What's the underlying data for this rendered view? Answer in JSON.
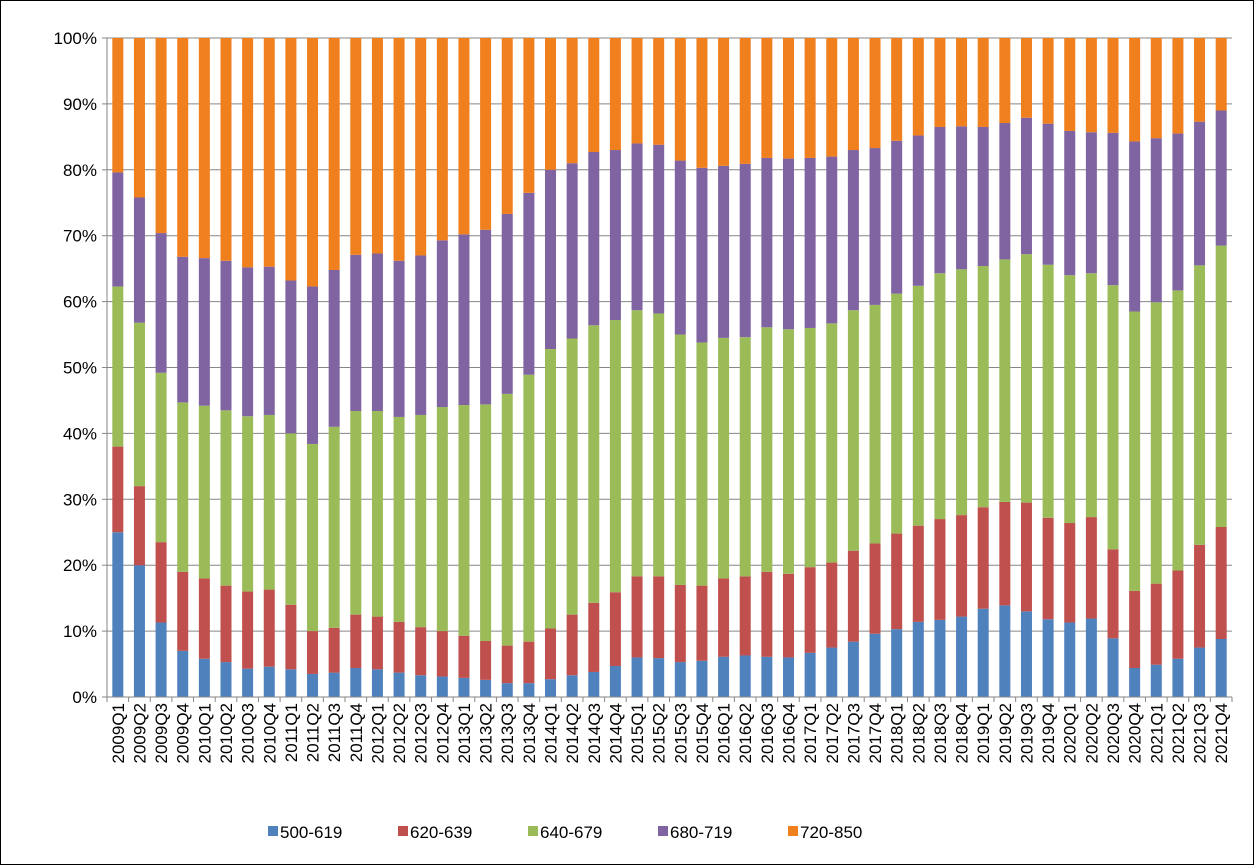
{
  "chart_data": {
    "type": "stacked_bar_100",
    "categories": [
      "2009Q1",
      "2009Q2",
      "2009Q3",
      "2009Q4",
      "2010Q1",
      "2010Q2",
      "2010Q3",
      "2010Q4",
      "2011Q1",
      "2011Q2",
      "2011Q3",
      "2011Q4",
      "2012Q1",
      "2012Q2",
      "2012Q3",
      "2012Q4",
      "2013Q1",
      "2013Q2",
      "2013Q3",
      "2013Q4",
      "2014Q1",
      "2014Q2",
      "2014Q3",
      "2014Q4",
      "2015Q1",
      "2015Q2",
      "2015Q3",
      "2015Q4",
      "2016Q1",
      "2016Q2",
      "2016Q3",
      "2016Q4",
      "2017Q1",
      "2017Q2",
      "2017Q3",
      "2017Q4",
      "2018Q1",
      "2018Q2",
      "2018Q3",
      "2018Q4",
      "2019Q1",
      "2019Q2",
      "2019Q3",
      "2019Q4",
      "2020Q1",
      "2020Q2",
      "2020Q3",
      "2020Q4",
      "2021Q1",
      "2021Q2",
      "2021Q3",
      "2021Q4"
    ],
    "series": [
      {
        "name": "500-619",
        "color": "#4f81bd",
        "values": [
          25,
          20,
          11.3,
          7,
          5.8,
          5.3,
          4.3,
          4.6,
          4.2,
          3.5,
          3.7,
          4.4,
          4.2,
          3.7,
          3.3,
          3.1,
          2.9,
          2.6,
          2.1,
          2.1,
          2.7,
          3.3,
          3.8,
          4.7,
          6,
          5.9,
          5.3,
          5.5,
          6.1,
          6.3,
          6.1,
          6,
          6.7,
          7.5,
          8.4,
          9.6,
          10.3,
          11.4,
          11.7,
          12.2,
          13.4,
          13.9,
          13,
          11.8,
          11.3,
          11.9,
          8.9,
          4.4,
          4.9,
          5.8,
          7.5,
          8.8
        ]
      },
      {
        "name": "620-639",
        "color": "#c0504d",
        "values": [
          13,
          12,
          12.2,
          12,
          12.2,
          11.6,
          11.7,
          11.7,
          9.8,
          6.5,
          6.8,
          8.1,
          8,
          7.7,
          7.3,
          6.9,
          6.4,
          5.9,
          5.7,
          6.3,
          7.7,
          9.2,
          10.5,
          11.2,
          12.3,
          12.4,
          11.7,
          11.4,
          11.9,
          12,
          12.9,
          12.7,
          13,
          12.9,
          13.8,
          13.7,
          14.5,
          14.6,
          15.3,
          15.4,
          15.4,
          15.7,
          16.5,
          15.4,
          15.1,
          15.4,
          13.5,
          11.7,
          12.3,
          13.4,
          15.6,
          17
        ]
      },
      {
        "name": "640-679",
        "color": "#9bbb59",
        "values": [
          24.3,
          24.8,
          25.7,
          25.7,
          26.2,
          26.6,
          26.6,
          26.5,
          26,
          28.4,
          30.5,
          30.9,
          31.2,
          31.1,
          32.2,
          34,
          35,
          35.9,
          38.2,
          40.5,
          42.4,
          41.9,
          42.1,
          41.3,
          40.4,
          39.9,
          38,
          36.9,
          36.5,
          36.3,
          37.1,
          37.1,
          36.3,
          36.3,
          36.5,
          36.2,
          36.4,
          36.4,
          37.3,
          37.3,
          36.6,
          36.8,
          37.7,
          38.4,
          37.6,
          37,
          40.1,
          42.4,
          42.7,
          42.5,
          42.4,
          42.7
        ]
      },
      {
        "name": "680-719",
        "color": "#8064a2",
        "values": [
          17.3,
          19,
          21.2,
          22.1,
          22.4,
          22.7,
          22.6,
          22.5,
          23.2,
          23.9,
          23.8,
          23.7,
          23.9,
          23.7,
          24.2,
          25.3,
          25.9,
          26.5,
          27.3,
          27.6,
          27.2,
          26.6,
          26.3,
          25.8,
          25.3,
          25.6,
          26.4,
          26.5,
          26.1,
          26.3,
          25.7,
          25.9,
          25.8,
          25.3,
          24.3,
          23.8,
          23.2,
          22.8,
          22.2,
          21.7,
          21.1,
          20.7,
          20.7,
          21.4,
          21.9,
          21.4,
          23.1,
          25.8,
          24.9,
          23.8,
          21.8,
          20.5
        ]
      },
      {
        "name": "720-850",
        "color": "#f07f1e",
        "values": [
          20.4,
          24.2,
          29.6,
          33.2,
          33.4,
          33.8,
          34.8,
          34.7,
          36.8,
          37.7,
          35.2,
          32.9,
          32.7,
          33.8,
          33,
          30.7,
          29.8,
          29.1,
          26.7,
          23.5,
          20,
          19,
          17.3,
          17,
          16,
          16.2,
          18.6,
          19.7,
          19.4,
          19.1,
          18.2,
          18.3,
          18.2,
          18,
          17,
          16.7,
          15.6,
          14.8,
          13.5,
          13.4,
          13.5,
          12.9,
          12.1,
          13,
          14.1,
          14.3,
          14.4,
          15.7,
          15.2,
          14.5,
          12.7,
          11
        ]
      }
    ],
    "ylim": [
      0,
      100
    ],
    "yticks": [
      {
        "value": 0,
        "label": "0%"
      },
      {
        "value": 10,
        "label": "10%"
      },
      {
        "value": 20,
        "label": "20%"
      },
      {
        "value": 30,
        "label": "30%"
      },
      {
        "value": 40,
        "label": "40%"
      },
      {
        "value": 50,
        "label": "50%"
      },
      {
        "value": 60,
        "label": "60%"
      },
      {
        "value": 70,
        "label": "70%"
      },
      {
        "value": 80,
        "label": "80%"
      },
      {
        "value": 90,
        "label": "90%"
      },
      {
        "value": 100,
        "label": "100%"
      }
    ],
    "grid": true
  }
}
